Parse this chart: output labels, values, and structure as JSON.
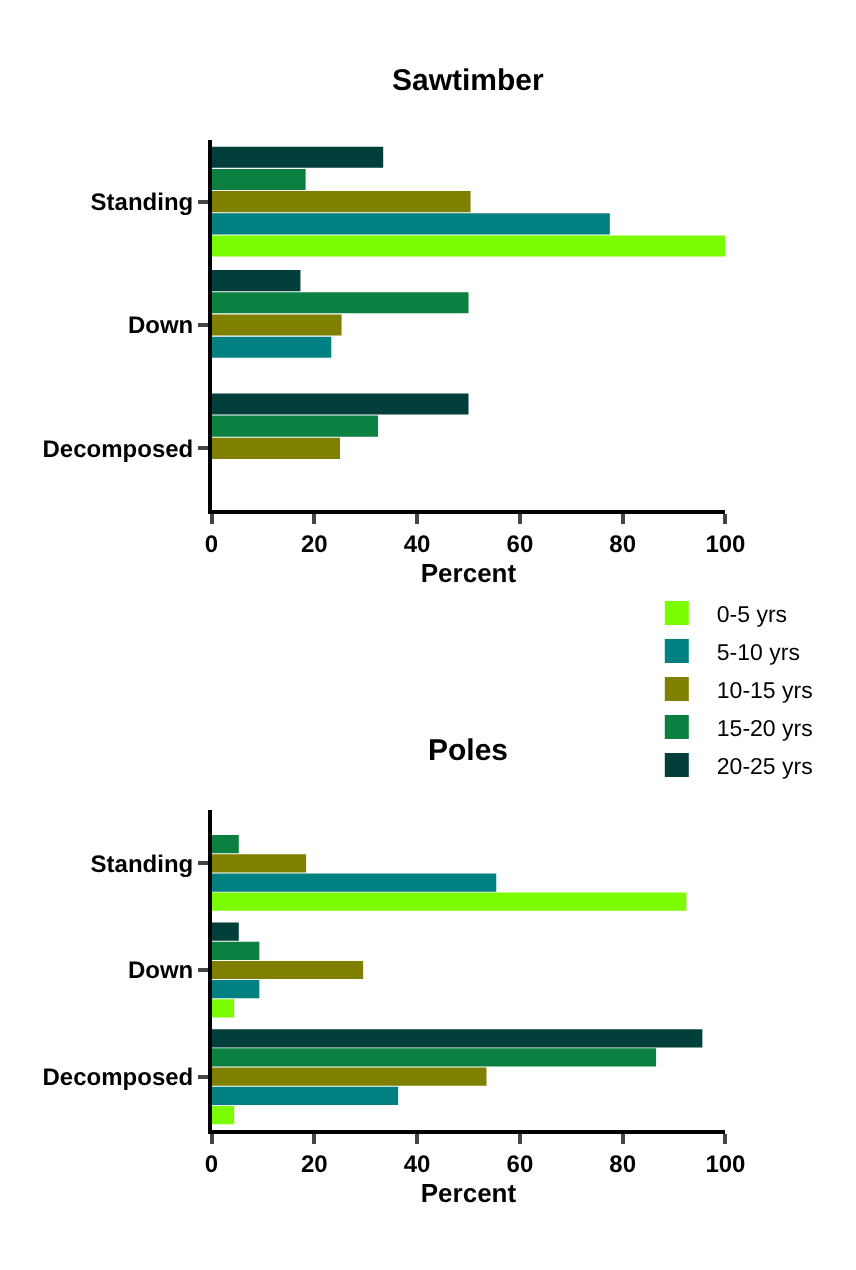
{
  "chart_data": [
    {
      "type": "bar",
      "orientation": "horizontal",
      "title": "Sawtimber",
      "xlabel": "Percent",
      "categories": [
        "Standing",
        "Down",
        "Decomposed"
      ],
      "xlim": [
        0,
        100
      ],
      "xticks": [
        0,
        20,
        40,
        60,
        80,
        100
      ],
      "legend": "bottom right",
      "series": [
        {
          "name": "0-5 yrs",
          "color": "#7cfc00",
          "values": [
            100,
            0,
            0
          ]
        },
        {
          "name": "5-10 yrs",
          "color": "#008080",
          "values": [
            77.5,
            23.3,
            0
          ]
        },
        {
          "name": "10-15 yrs",
          "color": "#808000",
          "values": [
            50.4,
            25.3,
            25
          ]
        },
        {
          "name": "15-20 yrs",
          "color": "#0b8040",
          "values": [
            18.3,
            50,
            32.4
          ]
        },
        {
          "name": "20-25 yrs",
          "color": "#023f3a",
          "values": [
            33.4,
            17.3,
            50
          ]
        }
      ]
    },
    {
      "type": "bar",
      "orientation": "horizontal",
      "title": "Poles",
      "xlabel": "Percent",
      "categories": [
        "Standing",
        "Down",
        "Decomposed"
      ],
      "xlim": [
        0,
        100
      ],
      "xticks": [
        0,
        20,
        40,
        60,
        80,
        100
      ],
      "series": [
        {
          "color": "#7cfc00",
          "values": [
            92.4,
            4.4,
            4.4
          ]
        },
        {
          "color": "#008080",
          "values": [
            55.4,
            9.3,
            36.3
          ]
        },
        {
          "color": "#808000",
          "values": [
            18.4,
            29.5,
            53.5
          ]
        },
        {
          "color": "#0b8040",
          "values": [
            5.3,
            9.3,
            86.5
          ]
        },
        {
          "color": "#023f3a",
          "values": [
            0,
            5.3,
            95.5
          ]
        }
      ]
    }
  ]
}
